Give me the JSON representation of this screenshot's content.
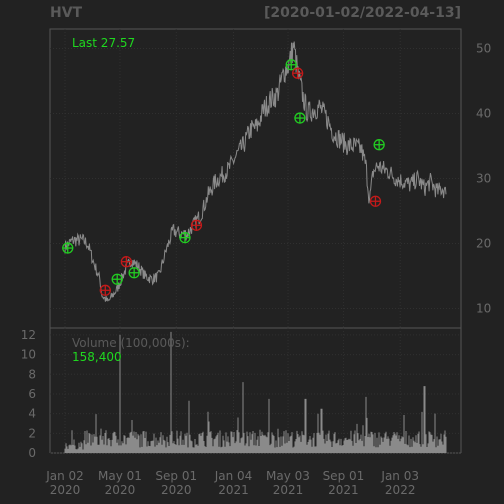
{
  "header": {
    "ticker": "HVT",
    "date_range": "[2020-01-02/2022-04-13]"
  },
  "colors": {
    "background": "#222222",
    "grid": "#303030",
    "price_line": "#8a8a8a",
    "axis_text": "#6a6a6a",
    "last_text": "#1fd81f",
    "buy_signal": "#22cc22",
    "sell_signal": "#c41a1a",
    "volume_bar": "#8a8a8a"
  },
  "chart_data": [
    {
      "type": "line",
      "panel": "price",
      "last_label": "Last 27.57",
      "x_range": [
        "2020-01-02",
        "2022-04-13"
      ],
      "ylim": [
        7,
        53
      ],
      "y_ticks": [
        10,
        20,
        30,
        40,
        50
      ],
      "grid": true,
      "series": [
        {
          "x": [
            "2020-01-02",
            "2020-01-20",
            "2020-02-10",
            "2020-02-20",
            "2020-03-05",
            "2020-03-18",
            "2020-03-23",
            "2020-04-05",
            "2020-04-25",
            "2020-05-10",
            "2020-05-25",
            "2020-06-10",
            "2020-06-25",
            "2020-07-10",
            "2020-07-25",
            "2020-08-10",
            "2020-08-25",
            "2020-09-10",
            "2020-09-25",
            "2020-10-10",
            "2020-10-25",
            "2020-11-10",
            "2020-11-25",
            "2020-12-10",
            "2020-12-25",
            "2021-01-10",
            "2021-01-25",
            "2021-02-10",
            "2021-02-25",
            "2021-03-10",
            "2021-03-25",
            "2021-04-10",
            "2021-04-25",
            "2021-05-05",
            "2021-05-15",
            "2021-05-25",
            "2021-06-05",
            "2021-06-15",
            "2021-06-25",
            "2021-07-10",
            "2021-07-25",
            "2021-08-10",
            "2021-08-25",
            "2021-09-10",
            "2021-09-25",
            "2021-10-10",
            "2021-10-20",
            "2021-10-28",
            "2021-11-05",
            "2021-11-15",
            "2021-11-25",
            "2021-12-10",
            "2021-12-25",
            "2022-01-10",
            "2022-01-25",
            "2022-02-10",
            "2022-02-25",
            "2022-03-10",
            "2022-03-25",
            "2022-04-05",
            "2022-04-13"
          ],
          "y": [
            19.5,
            20.5,
            20.5,
            20,
            17,
            14.5,
            12,
            11,
            13,
            15.5,
            17.5,
            16.5,
            15,
            14.5,
            15,
            19,
            22,
            21.5,
            21.5,
            23,
            24.5,
            27.5,
            29.5,
            30.5,
            31.5,
            33.5,
            35,
            37.5,
            38,
            40.5,
            42,
            43,
            46.5,
            47.5,
            50.5,
            46,
            42.5,
            40,
            40.5,
            41,
            39.5,
            37,
            36,
            35,
            35,
            34.5,
            32,
            26.5,
            31,
            32,
            31.5,
            31,
            30,
            29.5,
            29,
            30,
            28.5,
            29.5,
            28,
            28.5,
            27.57
          ]
        }
      ],
      "markers": [
        {
          "x": "2020-01-08",
          "y": 19.3,
          "signal": "buy"
        },
        {
          "x": "2020-03-30",
          "y": 12.8,
          "signal": "sell"
        },
        {
          "x": "2020-04-25",
          "y": 14.5,
          "signal": "buy"
        },
        {
          "x": "2020-05-15",
          "y": 17.2,
          "signal": "sell"
        },
        {
          "x": "2020-06-01",
          "y": 15.5,
          "signal": "buy"
        },
        {
          "x": "2020-09-20",
          "y": 20.9,
          "signal": "buy"
        },
        {
          "x": "2020-10-15",
          "y": 22.8,
          "signal": "sell"
        },
        {
          "x": "2021-05-10",
          "y": 47.5,
          "signal": "buy"
        },
        {
          "x": "2021-05-24",
          "y": 46.2,
          "signal": "sell"
        },
        {
          "x": "2021-05-29",
          "y": 39.3,
          "signal": "buy"
        },
        {
          "x": "2021-11-10",
          "y": 26.5,
          "signal": "sell"
        },
        {
          "x": "2021-11-18",
          "y": 35.2,
          "signal": "buy"
        }
      ]
    },
    {
      "type": "bar",
      "panel": "volume",
      "title": "Volume (100,000s):",
      "last_value_label": "158,400",
      "ylim": [
        0,
        12.7
      ],
      "y_ticks": [
        0,
        2,
        4,
        6,
        8,
        10,
        12
      ],
      "x_ticks": [
        {
          "date": "2020-01-02",
          "label": [
            "Jan 02",
            "2020"
          ]
        },
        {
          "date": "2020-05-01",
          "label": [
            "May 01",
            "2020"
          ]
        },
        {
          "date": "2020-09-01",
          "label": [
            "Sep 01",
            "2020"
          ]
        },
        {
          "date": "2021-01-04",
          "label": [
            "Jan 04",
            "2021"
          ]
        },
        {
          "date": "2021-05-03",
          "label": [
            "May 03",
            "2021"
          ]
        },
        {
          "date": "2021-09-01",
          "label": [
            "Sep 01",
            "2021"
          ]
        },
        {
          "date": "2022-01-03",
          "label": [
            "Jan 03",
            "2022"
          ]
        }
      ],
      "typical_volume": 1.6,
      "spikes": [
        {
          "x": "2020-05-01",
          "value": 12.0
        },
        {
          "x": "2020-08-20",
          "value": 12.3
        },
        {
          "x": "2020-09-28",
          "value": 5.3
        },
        {
          "x": "2020-11-10",
          "value": 4.2
        },
        {
          "x": "2021-01-25",
          "value": 7.2
        },
        {
          "x": "2021-03-22",
          "value": 5.5
        },
        {
          "x": "2021-06-10",
          "value": 5.5
        },
        {
          "x": "2021-07-15",
          "value": 4.5
        },
        {
          "x": "2021-10-20",
          "value": 5.7
        },
        {
          "x": "2022-02-25",
          "value": 6.8
        },
        {
          "x": "2022-03-20",
          "value": 4.0
        }
      ],
      "grid": true
    }
  ]
}
